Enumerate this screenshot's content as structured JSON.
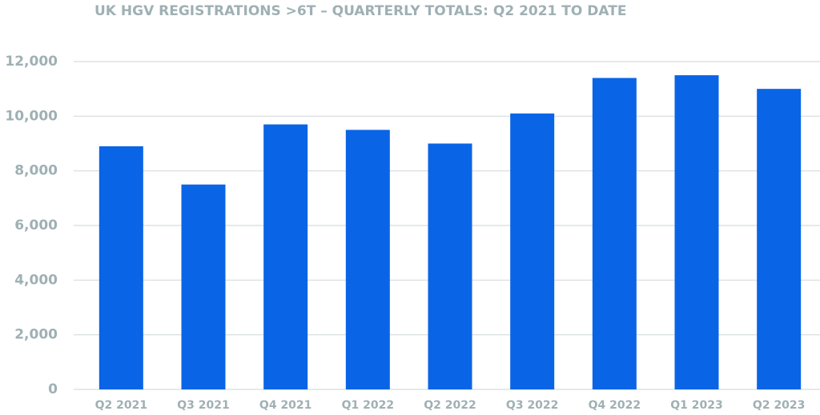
{
  "chart_data": {
    "type": "bar",
    "title": "UK HGV REGISTRATIONS >6T – QUARTERLY TOTALS: Q2 2021 TO DATE",
    "categories": [
      "Q2 2021",
      "Q3 2021",
      "Q4 2021",
      "Q1 2022",
      "Q2 2022",
      "Q3 2022",
      "Q4 2022",
      "Q1 2023",
      "Q2 2023"
    ],
    "values": [
      8900,
      7500,
      9700,
      9500,
      9000,
      10100,
      11400,
      11500,
      11000
    ],
    "color": "#0a64e6",
    "ylim": [
      0,
      12000
    ],
    "yticks": [
      0,
      {
        "value": 2000,
        "label": "2,000"
      },
      {
        "value": 4000,
        "label": "4,000"
      },
      {
        "value": 6000,
        "label": "6,000"
      },
      {
        "value": 8000,
        "label": "8,000"
      },
      {
        "value": 10000,
        "label": "10,000"
      },
      {
        "value": 12000,
        "label": "12,000"
      }
    ],
    "grid": true
  }
}
